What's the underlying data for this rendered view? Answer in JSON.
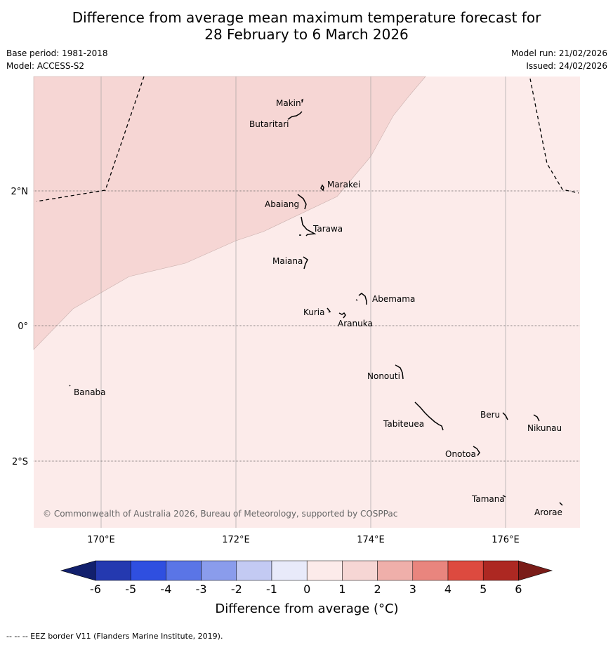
{
  "header": {
    "title_line1": "Difference from average mean maximum temperature forecast for",
    "title_line2": "28 February to 6 March 2026",
    "base_period": "Base period: 1981-2018",
    "model": "Model: ACCESS-S2",
    "model_run": "Model run: 21/02/2026",
    "issued": "Issued: 24/02/2026"
  },
  "map": {
    "lon_ticks": [
      "170°E",
      "172°E",
      "174°E",
      "176°E"
    ],
    "lat_ticks": [
      "2°N",
      "0°",
      "2°S"
    ],
    "copyright": "© Commonwealth of Australia 2026, Bureau of Meteorology, supported by COSPPac",
    "islands": [
      "Makin",
      "Butaritari",
      "Marakei",
      "Abaiang",
      "Tarawa",
      "Maiana",
      "Abemama",
      "Kuria",
      "Aranuka",
      "Nonouti",
      "Banaba",
      "Beru",
      "Nikunau",
      "Tabiteuea",
      "Onotoa",
      "Tamana",
      "Arorae"
    ],
    "anomaly_bands": [
      "1 to 2",
      "0 to 1"
    ]
  },
  "legend": {
    "ticks": [
      "-6",
      "-5",
      "-4",
      "-3",
      "-2",
      "-1",
      "0",
      "1",
      "2",
      "3",
      "4",
      "5",
      "6"
    ],
    "colors": [
      "#12206d",
      "#2439b0",
      "#2f4fe0",
      "#5a75e6",
      "#8a9cec",
      "#c3caf3",
      "#e8eafa",
      "#fcebea",
      "#f6d6d4",
      "#efafaa",
      "#e9857e",
      "#dd4a3f",
      "#ad2822",
      "#7a1c18"
    ],
    "label": "Difference from average (°C)"
  },
  "footer": {
    "note": "--  --  -- EEZ border V11 (Flanders Marine Institute, 2019)."
  }
}
